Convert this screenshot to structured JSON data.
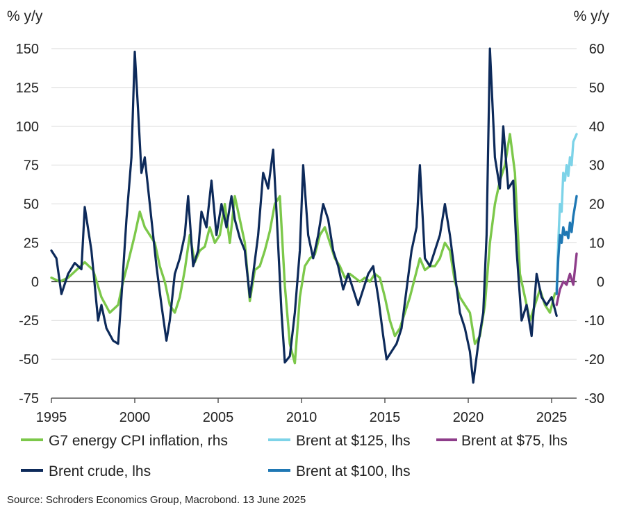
{
  "chart_data": {
    "type": "line",
    "left_axis_unit": "% y/y",
    "right_axis_unit": "% y/y",
    "left_ylim": [
      -75,
      150
    ],
    "left_ticks": [
      "150",
      "125",
      "100",
      "75",
      "50",
      "25",
      "0",
      "-25",
      "-50",
      "-75"
    ],
    "right_ylim": [
      -30,
      60
    ],
    "right_ticks": [
      "60",
      "50",
      "40",
      "30",
      "20",
      "10",
      "0",
      "-10",
      "-20",
      "-30"
    ],
    "xlim": [
      1995,
      2026.5
    ],
    "x_ticks": [
      "1995",
      "2000",
      "2005",
      "2010",
      "2015",
      "2020",
      "2025"
    ],
    "grid": true,
    "legend": [
      "G7 energy CPI inflation, rhs",
      "Brent at $125, lhs",
      "Brent at $75, lhs",
      "Brent crude, lhs",
      "Brent at $100, lhs"
    ],
    "source": "Source: Schroders Economics Group, Macrobond. 13 June 2025",
    "series": [
      {
        "name": "Brent crude, lhs",
        "axis": "left",
        "color": "#0d2a5a",
        "x": [
          1995.0,
          1995.3,
          1995.6,
          1996.0,
          1996.4,
          1996.8,
          1997.0,
          1997.4,
          1997.8,
          1998.0,
          1998.3,
          1998.7,
          1999.0,
          1999.2,
          1999.5,
          1999.8,
          2000.0,
          2000.2,
          2000.4,
          2000.6,
          2000.8,
          2001.0,
          2001.3,
          2001.6,
          2001.9,
          2002.1,
          2002.4,
          2002.7,
          2003.0,
          2003.2,
          2003.5,
          2003.8,
          2004.0,
          2004.3,
          2004.6,
          2004.9,
          2005.2,
          2005.5,
          2005.8,
          2006.0,
          2006.3,
          2006.6,
          2006.9,
          2007.1,
          2007.4,
          2007.7,
          2008.0,
          2008.3,
          2008.5,
          2008.8,
          2009.0,
          2009.3,
          2009.6,
          2009.9,
          2010.1,
          2010.4,
          2010.7,
          2011.0,
          2011.3,
          2011.6,
          2011.9,
          2012.2,
          2012.5,
          2012.8,
          2013.1,
          2013.4,
          2013.7,
          2014.0,
          2014.3,
          2014.6,
          2014.9,
          2015.1,
          2015.4,
          2015.7,
          2016.0,
          2016.3,
          2016.6,
          2016.9,
          2017.1,
          2017.4,
          2017.7,
          2018.0,
          2018.3,
          2018.6,
          2018.9,
          2019.2,
          2019.5,
          2019.8,
          2020.1,
          2020.3,
          2020.6,
          2020.9,
          2021.1,
          2021.3,
          2021.6,
          2021.9,
          2022.1,
          2022.4,
          2022.7,
          2022.9,
          2023.2,
          2023.5,
          2023.8,
          2024.1,
          2024.4,
          2024.7,
          2025.0,
          2025.3
        ],
        "values": [
          20,
          15,
          -8,
          5,
          12,
          8,
          48,
          20,
          -25,
          -15,
          -30,
          -38,
          -40,
          -10,
          40,
          80,
          148,
          110,
          70,
          80,
          60,
          40,
          10,
          -15,
          -38,
          -25,
          5,
          15,
          30,
          55,
          10,
          20,
          45,
          35,
          65,
          30,
          50,
          35,
          55,
          40,
          28,
          20,
          -10,
          5,
          30,
          70,
          60,
          85,
          45,
          -20,
          -52,
          -48,
          -20,
          20,
          75,
          30,
          15,
          30,
          50,
          40,
          20,
          10,
          -5,
          5,
          -5,
          -15,
          -5,
          5,
          10,
          -10,
          -35,
          -50,
          -45,
          -40,
          -30,
          -5,
          20,
          35,
          75,
          15,
          10,
          20,
          30,
          50,
          30,
          5,
          -20,
          -30,
          -45,
          -65,
          -40,
          -20,
          30,
          150,
          80,
          60,
          100,
          60,
          65,
          20,
          -25,
          -15,
          -35,
          5,
          -10,
          -15,
          -10,
          -22
        ]
      },
      {
        "name": "G7 energy CPI inflation, rhs",
        "axis": "right",
        "color": "#7cc84a",
        "x": [
          1995.0,
          1995.5,
          1996.0,
          1996.5,
          1997.0,
          1997.5,
          1998.0,
          1998.5,
          1999.0,
          1999.3,
          1999.6,
          2000.0,
          2000.3,
          2000.6,
          2000.9,
          2001.2,
          2001.5,
          2001.8,
          2002.1,
          2002.4,
          2002.7,
          2003.0,
          2003.3,
          2003.6,
          2003.9,
          2004.2,
          2004.5,
          2004.8,
          2005.1,
          2005.4,
          2005.7,
          2006.0,
          2006.3,
          2006.6,
          2006.9,
          2007.2,
          2007.5,
          2007.8,
          2008.1,
          2008.4,
          2008.7,
          2009.0,
          2009.3,
          2009.6,
          2009.9,
          2010.2,
          2010.5,
          2010.8,
          2011.1,
          2011.4,
          2011.7,
          2012.0,
          2012.3,
          2012.6,
          2012.9,
          2013.2,
          2013.5,
          2013.8,
          2014.1,
          2014.4,
          2014.7,
          2015.0,
          2015.3,
          2015.6,
          2015.9,
          2016.2,
          2016.5,
          2016.8,
          2017.1,
          2017.4,
          2017.7,
          2018.0,
          2018.3,
          2018.6,
          2018.9,
          2019.2,
          2019.5,
          2019.8,
          2020.1,
          2020.4,
          2020.7,
          2021.0,
          2021.3,
          2021.6,
          2021.9,
          2022.2,
          2022.5,
          2022.8,
          2023.1,
          2023.4,
          2023.7,
          2024.0,
          2024.3,
          2024.6,
          2024.9,
          2025.2
        ],
        "values": [
          1,
          0,
          1,
          3,
          5,
          3,
          -4,
          -8,
          -6,
          0,
          5,
          12,
          18,
          14,
          12,
          10,
          4,
          0,
          -6,
          -8,
          -4,
          3,
          12,
          5,
          8,
          9,
          14,
          10,
          12,
          20,
          10,
          22,
          16,
          10,
          -5,
          3,
          4,
          8,
          13,
          20,
          22,
          -1,
          -16,
          -21,
          -4,
          4,
          6,
          7,
          12,
          14,
          10,
          6,
          4,
          1,
          2,
          1,
          0,
          1,
          0,
          2,
          1,
          -4,
          -10,
          -14,
          -12,
          -8,
          -4,
          1,
          6,
          3,
          4,
          4,
          6,
          10,
          8,
          0,
          -4,
          -6,
          -8,
          -16,
          -14,
          -6,
          10,
          20,
          26,
          30,
          38,
          28,
          2,
          -4,
          -10,
          -6,
          -2,
          -6,
          -8,
          -3
        ]
      },
      {
        "name": "Brent at $125, lhs",
        "axis": "left",
        "color": "#7dd3e8",
        "x": [
          2025.3,
          2025.4,
          2025.5,
          2025.6,
          2025.7,
          2025.8,
          2025.9,
          2026.0,
          2026.1,
          2026.2,
          2026.3,
          2026.5
        ],
        "values": [
          -5,
          25,
          50,
          45,
          70,
          65,
          75,
          68,
          80,
          75,
          90,
          95
        ]
      },
      {
        "name": "Brent at $100, lhs",
        "axis": "left",
        "color": "#1f78b4",
        "x": [
          2025.3,
          2025.4,
          2025.5,
          2025.6,
          2025.7,
          2025.8,
          2025.9,
          2026.0,
          2026.1,
          2026.2,
          2026.3,
          2026.5
        ],
        "values": [
          -8,
          15,
          30,
          25,
          35,
          30,
          32,
          28,
          38,
          32,
          42,
          55
        ]
      },
      {
        "name": "Brent at $75, lhs",
        "axis": "left",
        "color": "#8e3d8a",
        "x": [
          2025.3,
          2025.5,
          2025.7,
          2025.9,
          2026.1,
          2026.3,
          2026.5
        ],
        "values": [
          -15,
          -5,
          0,
          -2,
          5,
          -2,
          18
        ]
      }
    ]
  }
}
